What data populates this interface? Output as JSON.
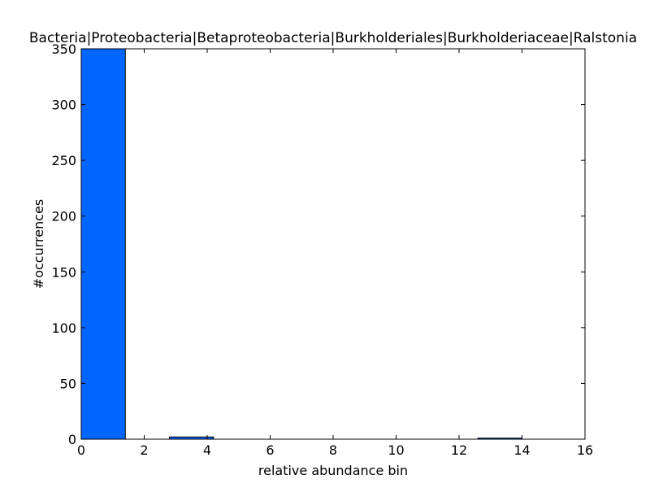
{
  "chart_data": {
    "type": "bar",
    "title": "Bacteria|Proteobacteria|Betaproteobacteria|Burkholderiales|Burkholderiaceae|Ralstonia",
    "xlabel": "relative abundance bin",
    "ylabel": "#occurrences",
    "xlim": [
      0,
      16
    ],
    "ylim": [
      0,
      350
    ],
    "xticks": [
      "0",
      "2",
      "4",
      "6",
      "8",
      "10",
      "12",
      "14",
      "16"
    ],
    "yticks": [
      "0",
      "50",
      "100",
      "150",
      "200",
      "250",
      "300",
      "350"
    ],
    "bins": [
      {
        "x0": 0.0,
        "x1": 1.4,
        "value": 350
      },
      {
        "x0": 2.8,
        "x1": 4.2,
        "value": 2
      },
      {
        "x0": 12.6,
        "x1": 14.0,
        "value": 1
      }
    ],
    "bar_color": "#0066ff",
    "grid": false
  }
}
